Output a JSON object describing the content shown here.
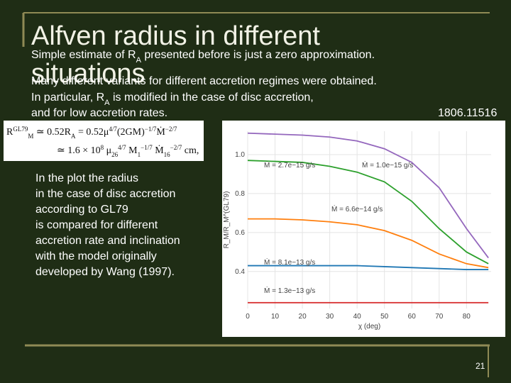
{
  "slide": {
    "title": [
      "Alfven radius in different",
      "situations"
    ],
    "body": [
      [
        "Simple estimate of R",
        "A",
        " presented before is just a zero approximation."
      ],
      [
        "Many different variants for different accretion regimes were obtained."
      ],
      [
        "In particular, R",
        "A",
        " is modified in the case of disc accretion,"
      ],
      [
        "and for low accretion rates."
      ]
    ],
    "reference": "1806.11516",
    "formula": {
      "line1": [
        "R",
        "GL79",
        "M",
        " ≃ 0.52R",
        "A",
        " = 0.52μ",
        "4/7",
        "(2GM)",
        "−1/7",
        "Ṁ",
        "−2/7"
      ],
      "line2": [
        "≃ 1.6 × 10",
        "8",
        " μ",
        "26",
        "4/7",
        " M",
        "1",
        "−1/7",
        " Ṁ",
        "16",
        "−2/7",
        " cm,"
      ]
    },
    "note": [
      "In the plot the radius",
      "in the case of disc accretion",
      "according to GL79",
      "is compared for different",
      "accretion rate and inclination",
      "with the model originally",
      "developed by Wang (1997)."
    ],
    "page_number": "21"
  },
  "chart_data": {
    "type": "line",
    "x_label": "χ (deg)",
    "y_label": "R_M/R_M^(GL79)",
    "x": [
      0,
      10,
      20,
      30,
      40,
      50,
      60,
      70,
      80,
      88
    ],
    "series": [
      {
        "name": "Ṁ = 1.0e−15 g/s",
        "color": "#9467bd",
        "values": [
          1.11,
          1.105,
          1.1,
          1.09,
          1.07,
          1.03,
          0.96,
          0.83,
          0.62,
          0.47
        ]
      },
      {
        "name": "Ṁ = 2.7e−15 g/s",
        "color": "#2ca02c",
        "values": [
          0.97,
          0.965,
          0.96,
          0.94,
          0.91,
          0.86,
          0.76,
          0.62,
          0.5,
          0.44
        ]
      },
      {
        "name": "Ṁ = 6.6e−14 g/s",
        "color": "#ff7f0e",
        "values": [
          0.67,
          0.67,
          0.665,
          0.655,
          0.64,
          0.61,
          0.56,
          0.49,
          0.44,
          0.42
        ]
      },
      {
        "name": "Ṁ = 8.1e−13 g/s",
        "color": "#1f77b4",
        "values": [
          0.43,
          0.43,
          0.43,
          0.43,
          0.43,
          0.425,
          0.42,
          0.415,
          0.41,
          0.41
        ]
      },
      {
        "name": "Ṁ = 1.3e−13 g/s",
        "color": "#d62728",
        "values": [
          0.24,
          0.24,
          0.24,
          0.24,
          0.24,
          0.24,
          0.24,
          0.24,
          0.24,
          0.24
        ]
      }
    ],
    "xlim": [
      0,
      89
    ],
    "ylim": [
      0.21,
      1.12
    ],
    "xticks": [
      0,
      10,
      20,
      30,
      40,
      50,
      60,
      70,
      80
    ],
    "yticks": [
      0.4,
      0.6,
      0.8,
      {
        "value": 1,
        "label": "1.0"
      }
    ],
    "grid": true
  }
}
